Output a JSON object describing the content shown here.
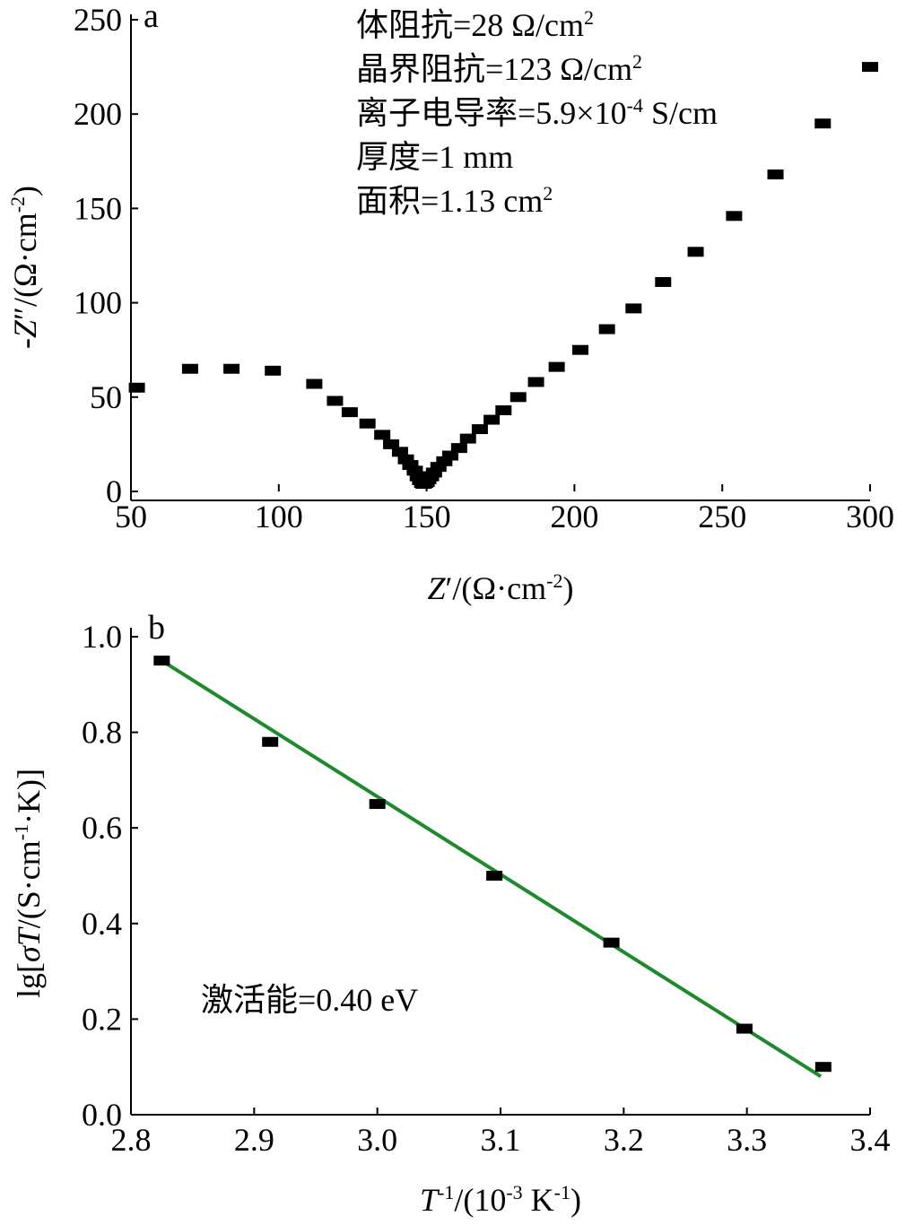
{
  "chart_data": [
    {
      "type": "scatter",
      "panel_label": "a",
      "xlabel": "Z′/(Ω·cm⁻²)",
      "ylabel": "-Z″/(Ω·cm⁻²)",
      "xlim": [
        50,
        300
      ],
      "ylim": [
        0,
        250
      ],
      "xticks": [
        "50",
        "100",
        "150",
        "200",
        "250",
        "300"
      ],
      "yticks": [
        "0",
        "50",
        "100",
        "150",
        "200",
        "250"
      ],
      "annotations": [
        "体阻抗=28 Ω/cm²",
        "晶界阻抗=123 Ω/cm²",
        "离子电导率=5.9×10⁻⁴ S/cm",
        "厚度=1 mm",
        "面积=1.13 cm²"
      ],
      "marker_color": "#000000",
      "series": [
        {
          "x": [
            52,
            70,
            84,
            98,
            112,
            119,
            124,
            130,
            135,
            138,
            141,
            143,
            144.5,
            146,
            147,
            147.8,
            148.5,
            149,
            149.5,
            150,
            150.6,
            151.5,
            152.5,
            154,
            156,
            158,
            161,
            164,
            168,
            172,
            176,
            181,
            187,
            194,
            202,
            211,
            220,
            230,
            241,
            254,
            268,
            284,
            300
          ],
          "y": [
            55,
            65,
            65,
            64,
            57,
            48,
            42,
            36,
            30,
            25,
            21,
            17,
            14,
            11,
            8,
            6,
            4.5,
            4,
            4.5,
            5,
            6.5,
            8,
            10,
            13,
            16,
            19,
            23,
            28,
            33,
            38,
            43,
            50,
            58,
            66,
            75,
            86,
            97,
            111,
            127,
            146,
            168,
            195,
            225
          ]
        }
      ]
    },
    {
      "type": "scatter",
      "panel_label": "b",
      "xlabel": "T⁻¹/(10⁻³ K⁻¹)",
      "ylabel": "lg[σT/(S·cm⁻¹·K)]",
      "xlim": [
        2.8,
        3.4
      ],
      "ylim": [
        0.0,
        1.0
      ],
      "xticks": [
        "2.8",
        "2.9",
        "3.0",
        "3.1",
        "3.2",
        "3.3",
        "3.4"
      ],
      "yticks": [
        "0.0",
        "0.2",
        "0.4",
        "0.6",
        "0.8",
        "1.0"
      ],
      "annotations": [
        "激活能=0.40 eV"
      ],
      "marker_color": "#000000",
      "fit_color": "#1e8a2e",
      "series": [
        {
          "x": [
            2.825,
            2.913,
            3.0,
            3.095,
            3.19,
            3.298,
            3.362
          ],
          "y": [
            0.95,
            0.78,
            0.65,
            0.5,
            0.36,
            0.18,
            0.1
          ]
        }
      ],
      "fit_line": {
        "x": [
          2.825,
          3.36
        ],
        "y": [
          0.95,
          0.08
        ]
      }
    }
  ]
}
